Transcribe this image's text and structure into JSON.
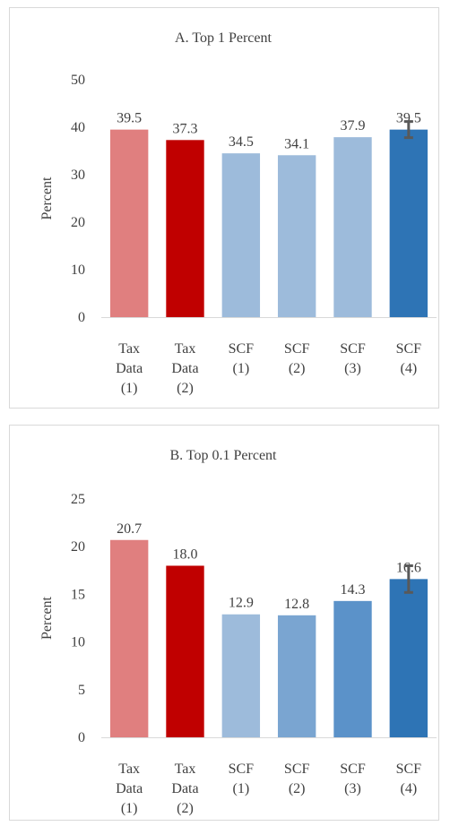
{
  "chart_data": [
    {
      "type": "bar",
      "title": "A. Top 1 Percent",
      "ylabel": "Percent",
      "ylim": [
        0,
        50
      ],
      "yticks": [
        0,
        10,
        20,
        30,
        40,
        50
      ],
      "grid": false,
      "categories": [
        [
          "Tax",
          "Data",
          "(1)"
        ],
        [
          "Tax",
          "Data",
          "(2)"
        ],
        [
          "SCF",
          "(1)"
        ],
        [
          "SCF",
          "(2)"
        ],
        [
          "SCF",
          "(3)"
        ],
        [
          "SCF",
          "(4)"
        ]
      ],
      "values": [
        39.5,
        37.3,
        34.5,
        34.1,
        37.9,
        39.5
      ],
      "value_labels": [
        "39.5",
        "37.3",
        "34.5",
        "34.1",
        "37.9",
        "39.5"
      ],
      "colors": [
        "#e07f7f",
        "#c00000",
        "#9dbbdb",
        "#9dbbdb",
        "#9dbbdb",
        "#2e74b5"
      ],
      "error_bar": {
        "index": 5,
        "low": 37.8,
        "high": 41.2
      }
    },
    {
      "type": "bar",
      "title": "B. Top 0.1 Percent",
      "ylabel": "Percent",
      "ylim": [
        0,
        25
      ],
      "yticks": [
        0,
        5,
        10,
        15,
        20,
        25
      ],
      "grid": false,
      "categories": [
        [
          "Tax",
          "Data",
          "(1)"
        ],
        [
          "Tax",
          "Data",
          "(2)"
        ],
        [
          "SCF",
          "(1)"
        ],
        [
          "SCF",
          "(2)"
        ],
        [
          "SCF",
          "(3)"
        ],
        [
          "SCF",
          "(4)"
        ]
      ],
      "values": [
        20.7,
        18.0,
        12.9,
        12.8,
        14.3,
        16.6
      ],
      "value_labels": [
        "20.7",
        "18.0",
        "12.9",
        "12.8",
        "14.3",
        "16.6"
      ],
      "colors": [
        "#e07f7f",
        "#c00000",
        "#9dbbdb",
        "#7aa5d1",
        "#5b92c9",
        "#2e74b5"
      ],
      "error_bar": {
        "index": 5,
        "low": 15.2,
        "high": 18.0
      }
    }
  ]
}
